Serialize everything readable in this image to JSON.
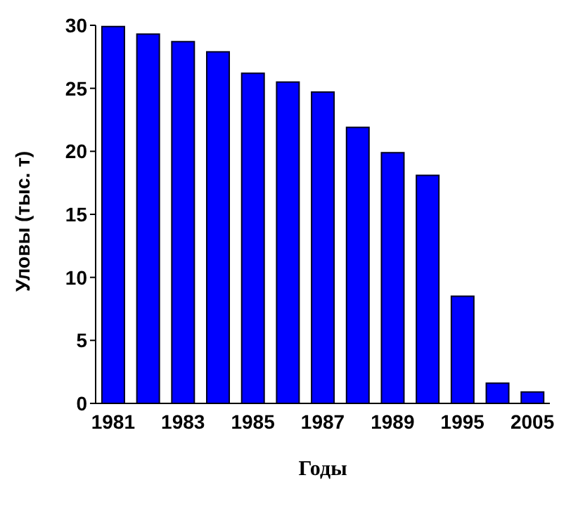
{
  "chart_data": {
    "type": "bar",
    "xlabel": "Годы",
    "ylabel": "Уловы (тыс. т)",
    "categories": [
      "1981",
      null,
      "1983",
      null,
      "1985",
      null,
      "1987",
      null,
      "1989",
      null,
      "1995",
      null,
      "2005"
    ],
    "values": [
      29.9,
      29.3,
      28.7,
      27.9,
      26.2,
      25.5,
      24.7,
      21.9,
      19.9,
      18.1,
      8.5,
      1.6,
      0.9
    ],
    "color": "#0000ff",
    "ylim": [
      0,
      30
    ],
    "yticks": [
      0,
      5,
      10,
      15,
      20,
      25,
      30
    ],
    "grid": false
  }
}
